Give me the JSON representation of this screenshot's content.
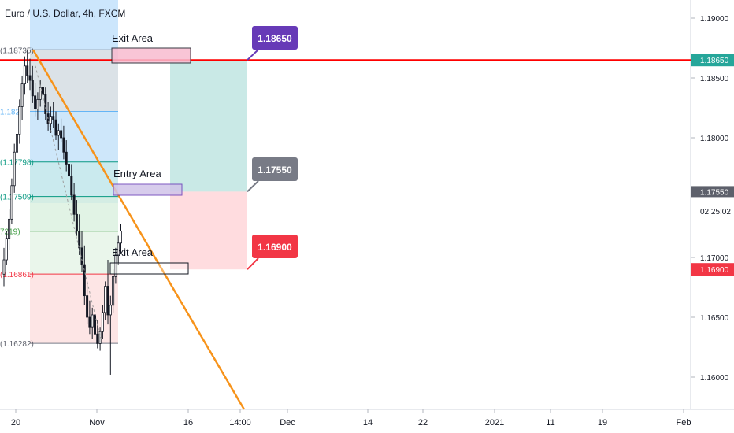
{
  "chart_data": {
    "type": "candlestick",
    "symbol_title": "Euro / U.S. Dollar, 4h, FXCM",
    "price_axis": {
      "ticks": [
        "1.19000",
        "1.18500",
        "1.18000",
        "1.17000",
        "1.16500",
        "1.16000"
      ],
      "tick_values": [
        1.19,
        1.185,
        1.18,
        1.17,
        1.165,
        1.16
      ],
      "ylim": [
        1.1568,
        1.1915
      ]
    },
    "time_axis": {
      "ticks": [
        "20",
        "Nov",
        "16",
        "14:00",
        "Dec",
        "14",
        "22",
        "2021",
        "11",
        "19",
        "Feb"
      ]
    },
    "price_tags": [
      {
        "value": "1.18650",
        "color": "#26a69a"
      },
      {
        "value": "1.17550",
        "color": "#5d606b"
      },
      {
        "value": "02:25:02",
        "color": ""
      },
      {
        "value": "1.16900",
        "color": "#f23645"
      }
    ],
    "fib_levels": [
      {
        "label": "(1.18735)",
        "price": 1.18735,
        "color": "#5d606b"
      },
      {
        "label": "1.182",
        "price": 1.1822,
        "color": "#64b5f6"
      },
      {
        "label": "(1.17798)",
        "price": 1.17798,
        "color": "#089981"
      },
      {
        "label": "(1.17509)",
        "price": 1.17509,
        "color": "#089981"
      },
      {
        "label": "7219)",
        "price": 1.17219,
        "color": "#43a047"
      },
      {
        "label": "(1.16861)",
        "price": 1.16861,
        "color": "#f23645"
      },
      {
        "label": "(1.16282)",
        "price": 1.16282,
        "color": "#5d606b"
      }
    ],
    "annotations": {
      "exit_area_top": "Exit Area",
      "entry_area": "Entry Area",
      "exit_area_bottom": "Exit Area"
    },
    "callouts": [
      {
        "value": "1.18650",
        "color": "#673ab7"
      },
      {
        "value": "1.17550",
        "color": "#787b86"
      },
      {
        "value": "1.16900",
        "color": "#f23645"
      }
    ],
    "horizontal_line": {
      "price": 1.1865,
      "color": "#ff0000"
    },
    "trendline_color": "#f7931a",
    "position": {
      "target": 1.1865,
      "entry": 1.1755,
      "stop": 1.169
    },
    "candles": [
      [
        1.1686,
        1.1708,
        1.1676,
        1.1698
      ],
      [
        1.1698,
        1.1722,
        1.1694,
        1.1716
      ],
      [
        1.1716,
        1.174,
        1.1706,
        1.1732
      ],
      [
        1.1732,
        1.1766,
        1.1728,
        1.176
      ],
      [
        1.176,
        1.1795,
        1.1754,
        1.1788
      ],
      [
        1.1788,
        1.1812,
        1.1776,
        1.1803
      ],
      [
        1.1803,
        1.1832,
        1.1795,
        1.1826
      ],
      [
        1.1826,
        1.1852,
        1.1815,
        1.1845
      ],
      [
        1.1845,
        1.1868,
        1.1836,
        1.186
      ],
      [
        1.186,
        1.18735,
        1.1846,
        1.1852
      ],
      [
        1.1852,
        1.1866,
        1.184,
        1.1848
      ],
      [
        1.1848,
        1.186,
        1.1829,
        1.1835
      ],
      [
        1.1835,
        1.1846,
        1.1818,
        1.1824
      ],
      [
        1.1824,
        1.1838,
        1.1815,
        1.1832
      ],
      [
        1.1832,
        1.1848,
        1.1826,
        1.1842
      ],
      [
        1.1842,
        1.1852,
        1.1832,
        1.1836
      ],
      [
        1.1836,
        1.1842,
        1.1815,
        1.182
      ],
      [
        1.182,
        1.183,
        1.1806,
        1.1812
      ],
      [
        1.1812,
        1.1826,
        1.1804,
        1.1818
      ],
      [
        1.1818,
        1.183,
        1.1808,
        1.1815
      ],
      [
        1.1815,
        1.1822,
        1.1798,
        1.1802
      ],
      [
        1.1802,
        1.1812,
        1.179,
        1.1806
      ],
      [
        1.1806,
        1.1816,
        1.1796,
        1.18
      ],
      [
        1.18,
        1.181,
        1.1782,
        1.1788
      ],
      [
        1.1788,
        1.1798,
        1.1772,
        1.1778
      ],
      [
        1.1778,
        1.179,
        1.1762,
        1.1768
      ],
      [
        1.1768,
        1.1778,
        1.1748,
        1.1752
      ],
      [
        1.1752,
        1.1762,
        1.173,
        1.1736
      ],
      [
        1.1736,
        1.1748,
        1.1718,
        1.1722
      ],
      [
        1.1722,
        1.1736,
        1.1702,
        1.1708
      ],
      [
        1.1708,
        1.1722,
        1.1688,
        1.1694
      ],
      [
        1.1694,
        1.171,
        1.166,
        1.1668
      ],
      [
        1.1668,
        1.168,
        1.1644,
        1.165
      ],
      [
        1.165,
        1.1664,
        1.1636,
        1.1642
      ],
      [
        1.1642,
        1.1658,
        1.1632,
        1.1652
      ],
      [
        1.1652,
        1.1664,
        1.163,
        1.1636
      ],
      [
        1.1636,
        1.1648,
        1.1624,
        1.1628
      ],
      [
        1.1628,
        1.1642,
        1.1622,
        1.1638
      ],
      [
        1.1638,
        1.166,
        1.1632,
        1.1654
      ],
      [
        1.1654,
        1.168,
        1.1648,
        1.1676
      ],
      [
        1.1676,
        1.1698,
        1.1644,
        1.1652
      ],
      [
        1.1652,
        1.1668,
        1.1602,
        1.166
      ],
      [
        1.166,
        1.169,
        1.1654,
        1.1684
      ],
      [
        1.1684,
        1.1708,
        1.1678,
        1.1702
      ],
      [
        1.1702,
        1.1718,
        1.1694,
        1.1712
      ],
      [
        1.1712,
        1.1728,
        1.1704,
        1.1722
      ]
    ]
  }
}
